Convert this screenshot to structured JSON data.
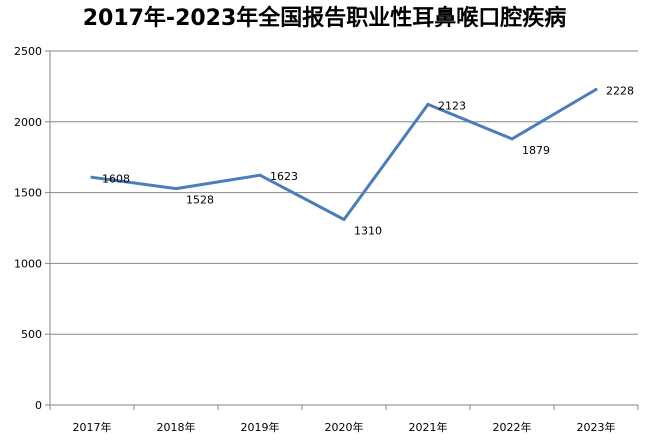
{
  "chart_data": {
    "type": "line",
    "title": "2017年-2023年全国报告职业性耳鼻喉口腔疾病",
    "categories": [
      "2017年",
      "2018年",
      "2019年",
      "2020年",
      "2021年",
      "2022年",
      "2023年"
    ],
    "series": [
      {
        "values": [
          1608,
          1528,
          1623,
          1310,
          2123,
          1879,
          2228
        ],
        "color": "#4a7ebb"
      }
    ],
    "ylim": [
      0,
      2500
    ],
    "yticks": [
      "0",
      "500",
      "1000",
      "1500",
      "2000",
      "2500"
    ],
    "data_labels": [
      "1608",
      "1528",
      "1623",
      "1310",
      "2123",
      "1879",
      "2228"
    ],
    "grid": true,
    "legend": "none"
  }
}
